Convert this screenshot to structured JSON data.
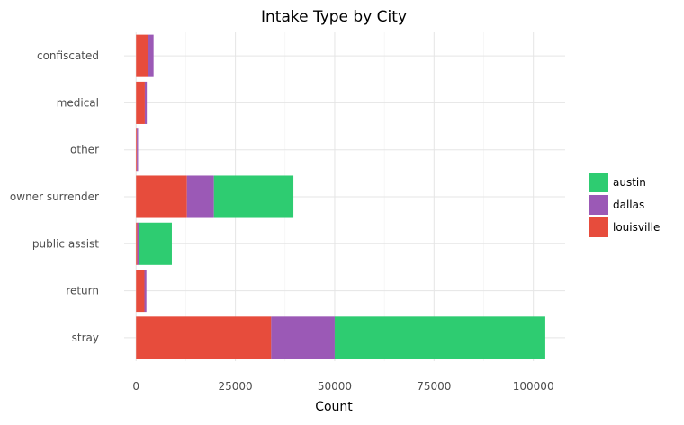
{
  "chart_data": {
    "type": "bar",
    "orientation": "horizontal",
    "stacked": true,
    "title": "Intake Type by City",
    "xlabel": "Count",
    "ylabel": "",
    "categories": [
      "confiscated",
      "medical",
      "other",
      "owner surrender",
      "public assist",
      "return",
      "stray"
    ],
    "series": [
      {
        "name": "louisville",
        "color": "#e74c3c",
        "values": [
          3000,
          2200,
          200,
          12800,
          300,
          2100,
          34000
        ]
      },
      {
        "name": "dallas",
        "color": "#9b59b6",
        "values": [
          1400,
          500,
          300,
          6800,
          500,
          500,
          16000
        ]
      },
      {
        "name": "austin",
        "color": "#2ecc71",
        "values": [
          0,
          0,
          0,
          20000,
          8200,
          0,
          53000
        ]
      }
    ],
    "xlim": [
      -3000,
      108000
    ],
    "xticks": [
      0,
      25000,
      50000,
      75000,
      100000
    ],
    "xtick_labels": [
      "0",
      "25000",
      "50000",
      "75000",
      "100000"
    ],
    "legend_order": [
      "austin",
      "dallas",
      "louisville"
    ],
    "legend_position": "right",
    "grid": true
  }
}
